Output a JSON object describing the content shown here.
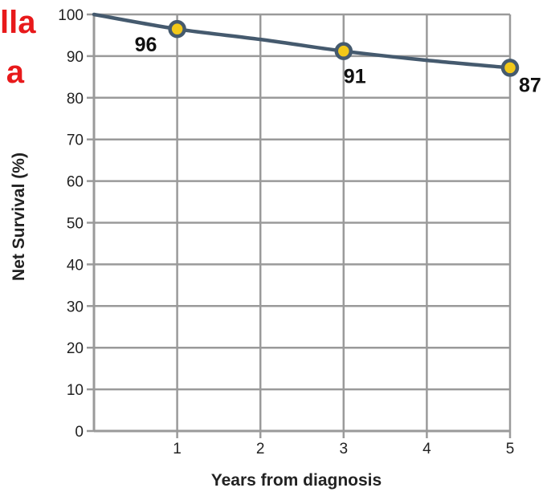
{
  "fragments": {
    "line1": "lla",
    "line2": "a"
  },
  "chart_data": {
    "type": "line",
    "title": "",
    "xlabel": "Years from diagnosis",
    "ylabel": "Net Survival (%)",
    "xlim": [
      0,
      5
    ],
    "ylim": [
      0,
      100
    ],
    "x_ticks": [
      1,
      2,
      3,
      4,
      5
    ],
    "y_ticks": [
      0,
      10,
      20,
      30,
      40,
      50,
      60,
      70,
      80,
      90,
      100
    ],
    "grid": true,
    "series": [
      {
        "curve_x": [
          0,
          1,
          2,
          3,
          4,
          5
        ],
        "curve_y": [
          100,
          96.5,
          94,
          91.2,
          89,
          87.2
        ],
        "points": [
          {
            "x": 1,
            "y": 96.5,
            "label": "96"
          },
          {
            "x": 3,
            "y": 91.2,
            "label": "91"
          },
          {
            "x": 5,
            "y": 87.2,
            "label": "87"
          }
        ]
      }
    ],
    "colors": {
      "line": "#455a6e",
      "marker_fill": "#f2c819",
      "marker_stroke": "#455a6e",
      "grid": "#9a9a9a",
      "axis": "#9a9a9a",
      "fragment_text": "#e8191b"
    }
  }
}
